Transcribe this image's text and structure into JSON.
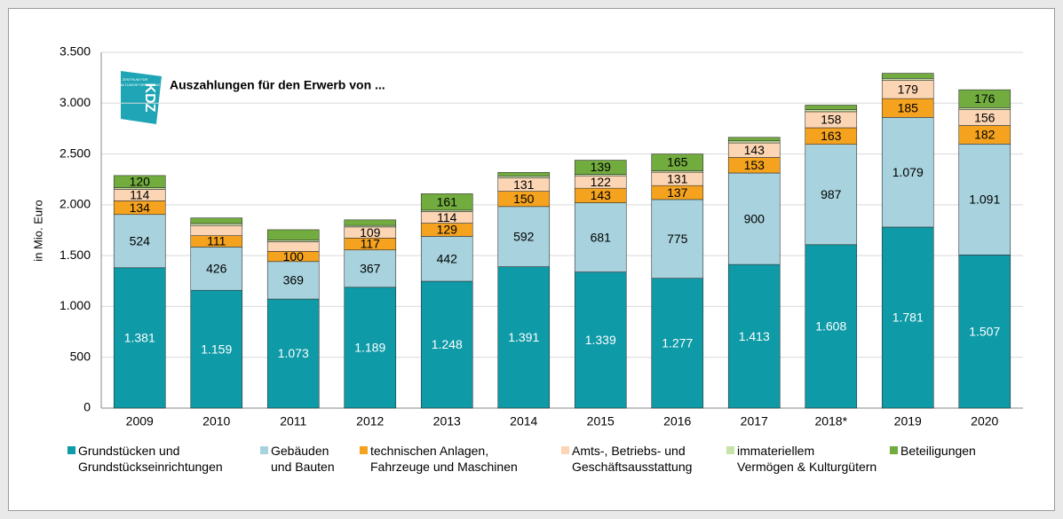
{
  "logo": {
    "line1": "ZENTRUM FÜR",
    "line2": "VERWALTUNGSFORSCHUNG",
    "mark": "KDZ"
  },
  "chart_data": {
    "type": "stacked_bar",
    "title": "Auszahlungen für den Erwerb von ...",
    "y_label": "in Mio. Euro",
    "categories": [
      "2009",
      "2010",
      "2011",
      "2012",
      "2013",
      "2014",
      "2015",
      "2016",
      "2017",
      "2018*",
      "2019",
      "2020"
    ],
    "ylim": [
      0,
      3500
    ],
    "yticks": [
      0,
      500,
      {
        "value": 1000,
        "label": "1.000"
      },
      {
        "value": 1500,
        "label": "1.500"
      },
      {
        "value": 2000,
        "label": "2.000"
      },
      {
        "value": 2500,
        "label": "2.500"
      },
      {
        "value": 3000,
        "label": "3.000"
      },
      {
        "value": 3500,
        "label": "3.500"
      }
    ],
    "grid": true,
    "series": [
      {
        "name": "Grundstücken und\nGrundstückseinrichtungen",
        "color": "#0e9aa7",
        "label_color": "#ffffff",
        "values": [
          1381,
          1159,
          1073,
          1189,
          1248,
          1391,
          1339,
          1277,
          1413,
          1608,
          1781,
          1507
        ],
        "value_labels": [
          "1.381",
          "1.159",
          "1.073",
          "1.189",
          "1.248",
          "1.391",
          "1.339",
          "1.277",
          "1.413",
          "1.608",
          "1.781",
          "1.507"
        ]
      },
      {
        "name": "Gebäuden\nund Bauten",
        "color": "#a8d3de",
        "label_color": "#000000",
        "values": [
          524,
          426,
          369,
          367,
          442,
          592,
          681,
          775,
          900,
          987,
          1079,
          1091
        ],
        "value_labels": [
          "524",
          "426",
          "369",
          "367",
          "442",
          "592",
          "681",
          "775",
          "900",
          "987",
          "1.079",
          "1.091"
        ]
      },
      {
        "name": "technischen Anlagen,\nFahrzeuge und Maschinen",
        "color": "#f5a31f",
        "label_color": "#000000",
        "values": [
          134,
          111,
          100,
          117,
          129,
          150,
          143,
          137,
          153,
          163,
          185,
          182
        ]
      },
      {
        "name": "Amts-, Betriebs- und\nGeschäftsausstattung",
        "color": "#fcd6b4",
        "label_color": "#000000",
        "values": [
          114,
          100,
          95,
          109,
          114,
          131,
          122,
          131,
          143,
          158,
          179,
          156
        ],
        "value_labels": [
          "114",
          null,
          null,
          "109",
          "114",
          "131",
          "122",
          "131",
          "143",
          "158",
          "179",
          "156"
        ]
      },
      {
        "name": "immateriellem\nVermögen & Kulturgütern",
        "color": "#c7e3a6",
        "label_color": "#000000",
        "values": [
          15,
          20,
          15,
          15,
          15,
          20,
          15,
          15,
          20,
          20,
          20,
          20
        ],
        "value_labels": [
          null,
          null,
          null,
          null,
          null,
          null,
          null,
          null,
          null,
          null,
          null,
          null
        ]
      },
      {
        "name": "Beteiligungen",
        "color": "#72ac3f",
        "label_color": "#000000",
        "values": [
          120,
          55,
          103,
          55,
          161,
          35,
          139,
          165,
          35,
          45,
          50,
          176
        ],
        "value_labels": [
          "120",
          null,
          null,
          null,
          "161",
          null,
          "139",
          "165",
          null,
          null,
          null,
          "176"
        ]
      }
    ]
  }
}
